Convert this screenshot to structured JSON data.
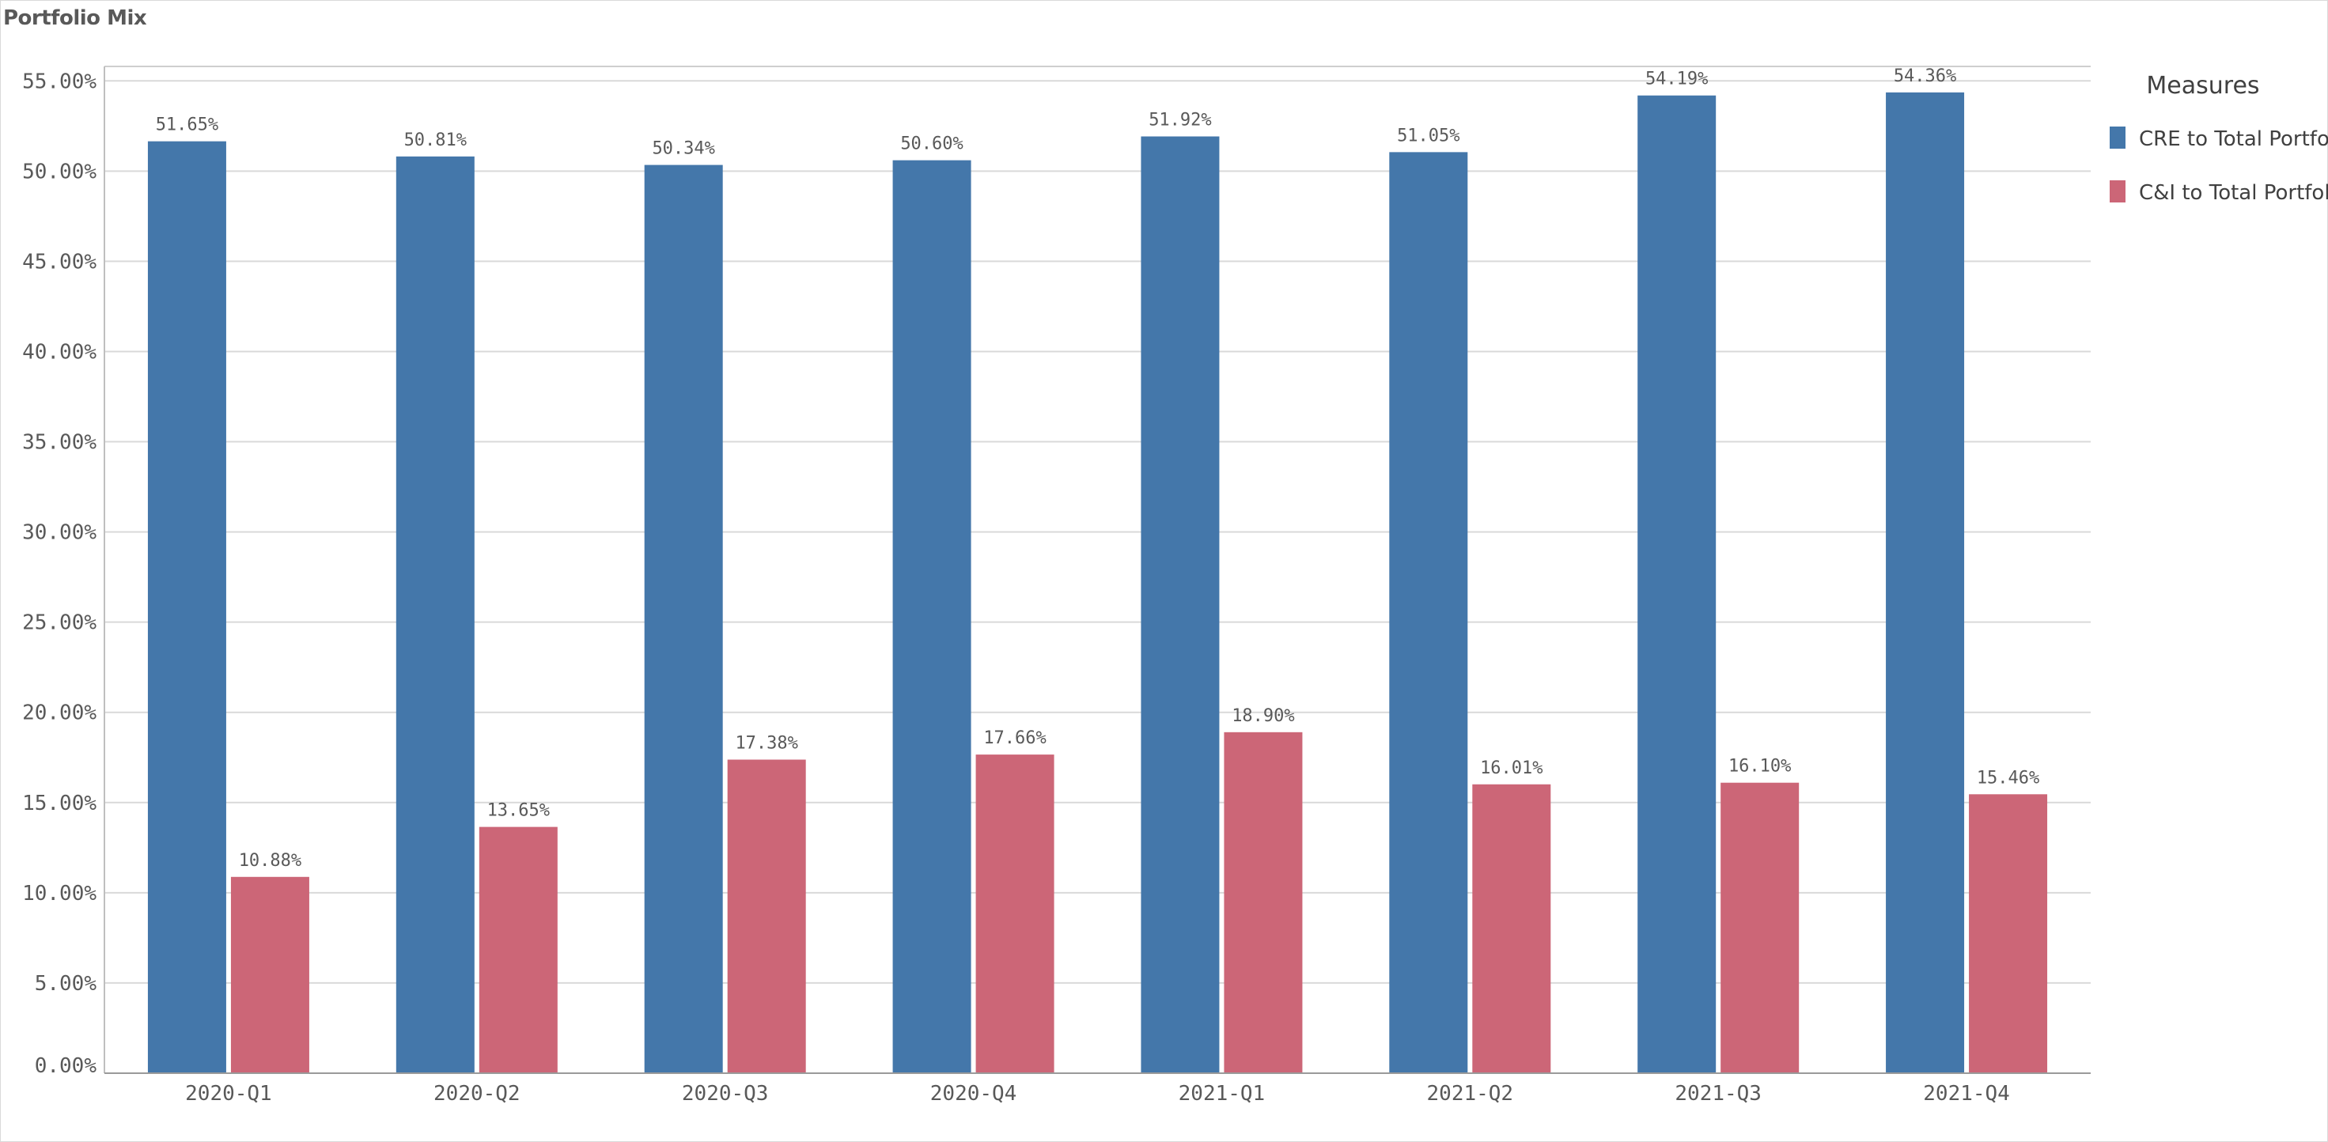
{
  "chart_data": {
    "type": "bar",
    "title": "Portfolio Mix",
    "categories": [
      "2020-Q1",
      "2020-Q2",
      "2020-Q3",
      "2020-Q4",
      "2021-Q1",
      "2021-Q2",
      "2021-Q3",
      "2021-Q4"
    ],
    "series": [
      {
        "name": "CRE to Total Portfolio",
        "color": "#4477aa",
        "values": [
          51.65,
          50.81,
          50.34,
          50.6,
          51.92,
          51.05,
          54.19,
          54.36
        ],
        "labels": [
          "51.65%",
          "50.81%",
          "50.34%",
          "50.60%",
          "51.92%",
          "51.05%",
          "54.19%",
          "54.36%"
        ]
      },
      {
        "name": "C&I to Total Portfolio",
        "color": "#cc6677",
        "values": [
          10.88,
          13.65,
          17.38,
          17.66,
          18.9,
          16.01,
          16.1,
          15.46
        ],
        "labels": [
          "10.88%",
          "13.65%",
          "17.38%",
          "17.66%",
          "18.90%",
          "16.01%",
          "16.10%",
          "15.46%"
        ]
      }
    ],
    "yticks": [
      "0.00%",
      "5.00%",
      "10.00%",
      "15.00%",
      "20.00%",
      "25.00%",
      "30.00%",
      "35.00%",
      "40.00%",
      "45.00%",
      "50.00%",
      "55.00%"
    ],
    "ylim": [
      0,
      55.8
    ],
    "legend": {
      "title": "Measures",
      "position": "right"
    },
    "grid": true
  }
}
